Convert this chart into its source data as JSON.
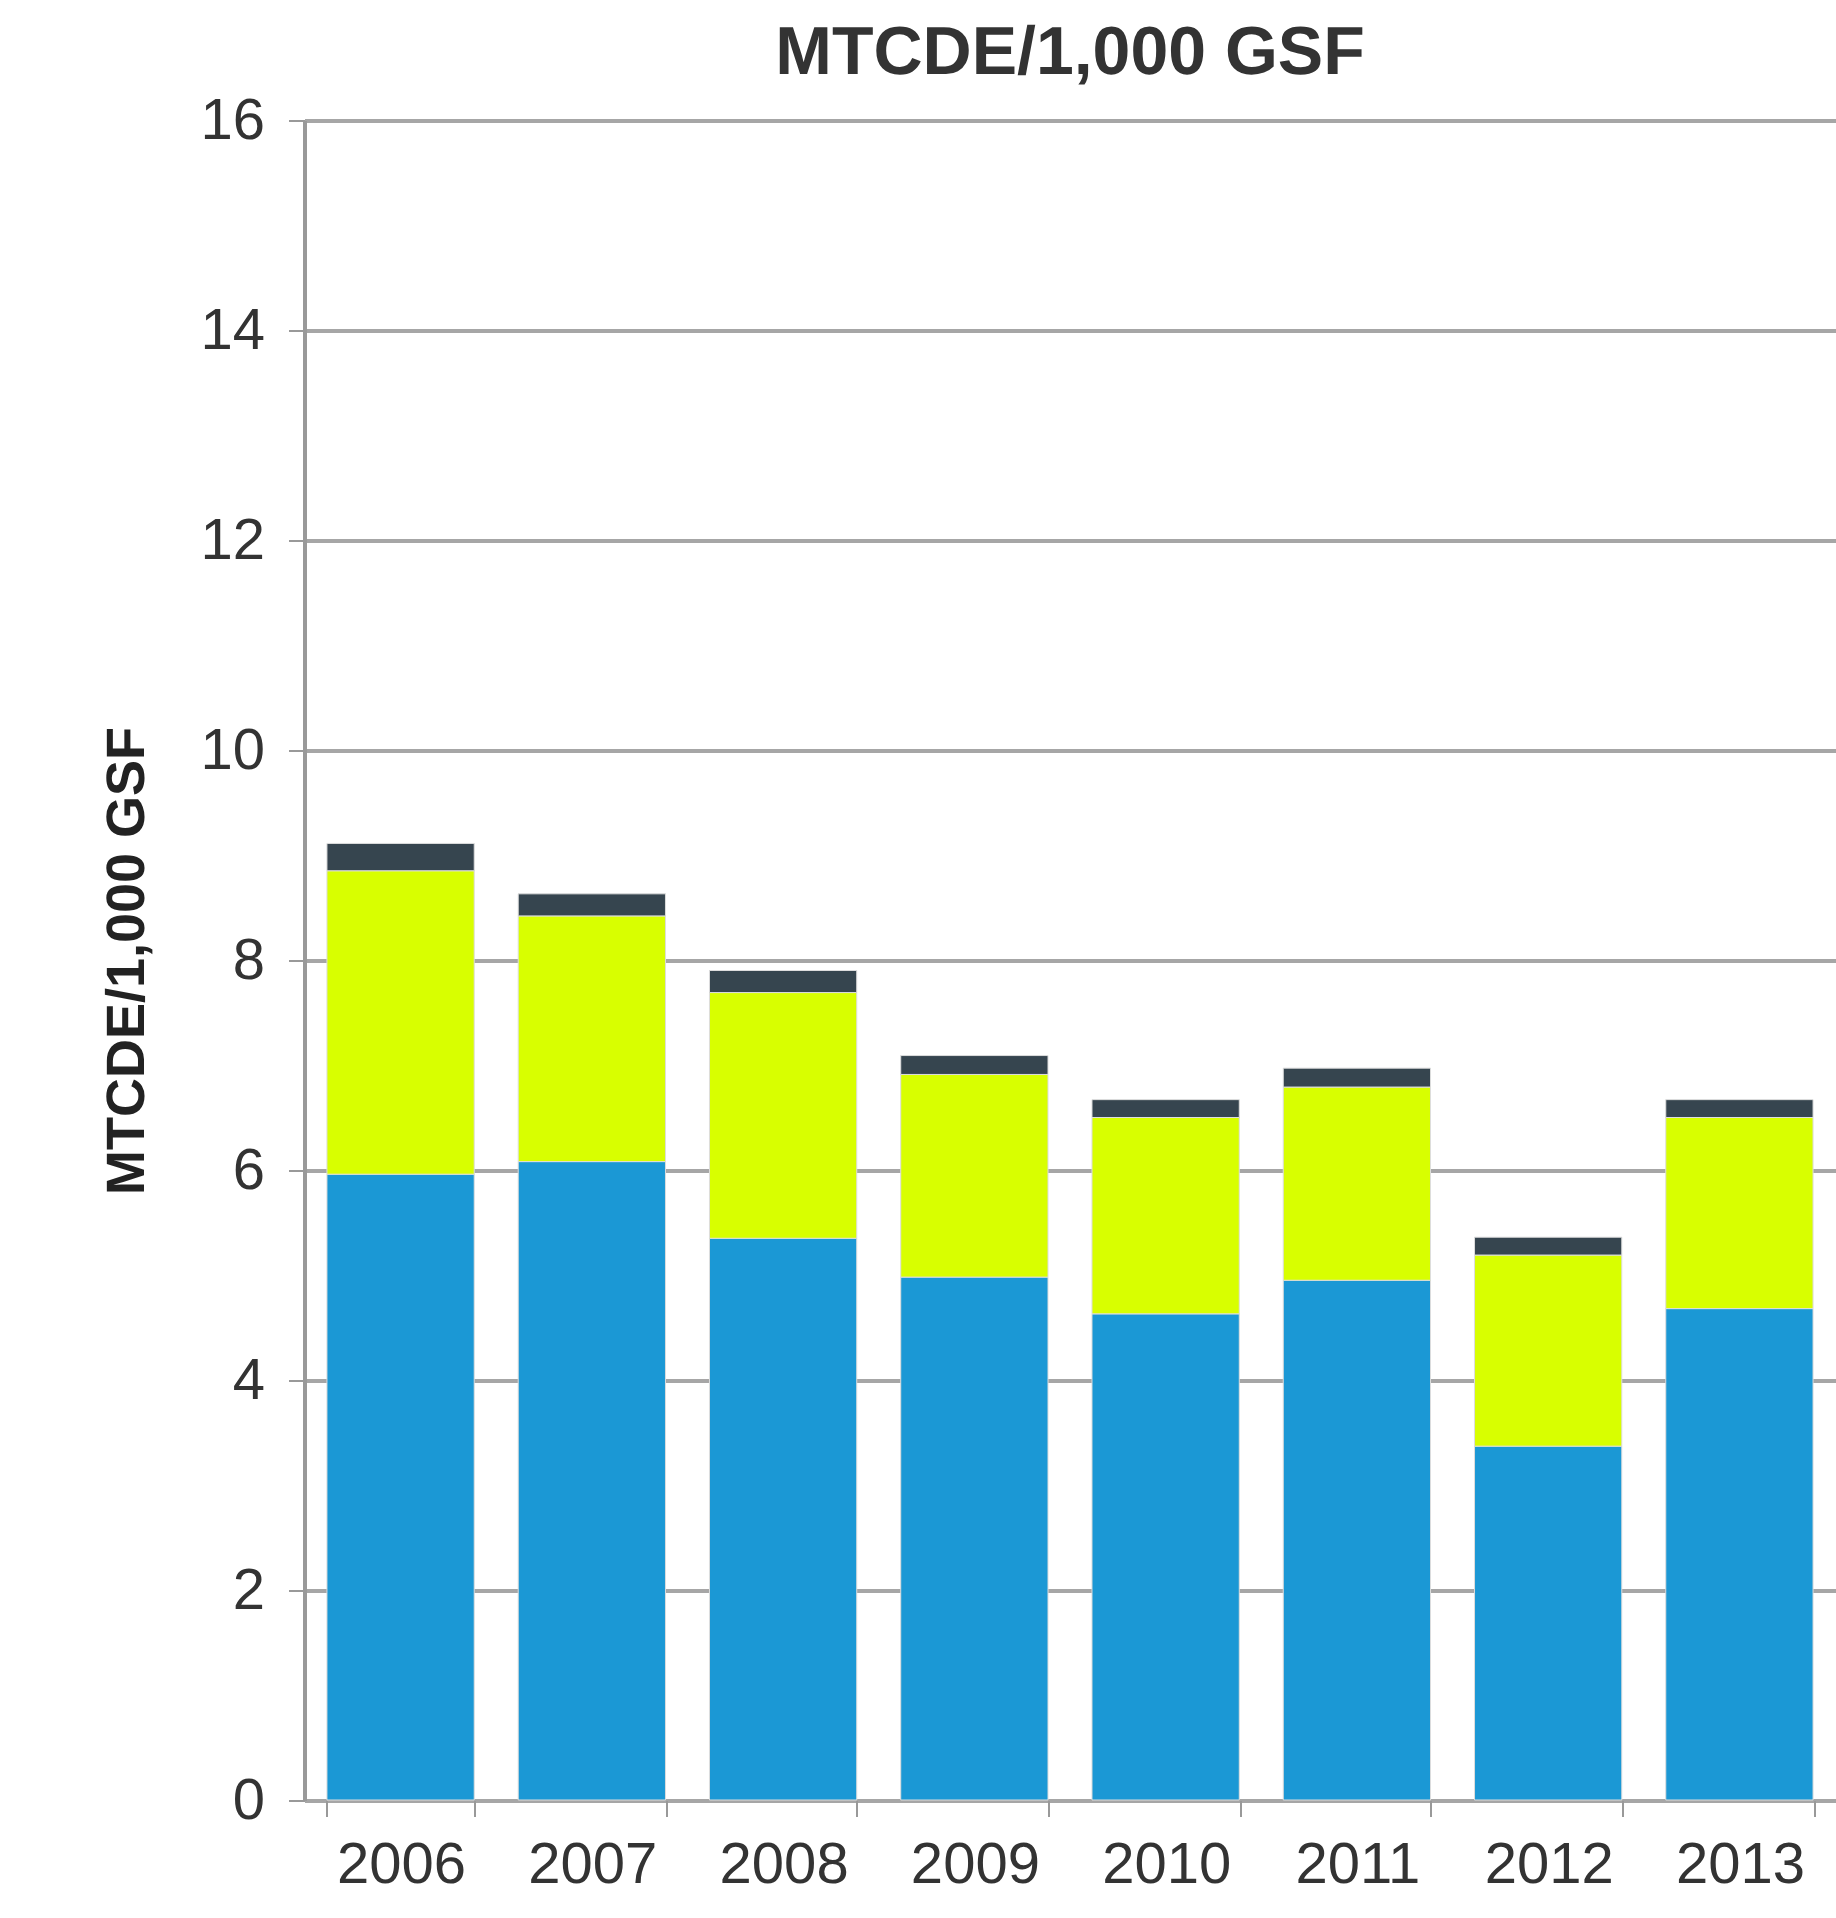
{
  "chart_data": {
    "type": "bar",
    "title": "MTCDE/1,000 GSF",
    "ylabel": "MTCDE/1,000 GSF",
    "categories": [
      "2006",
      "2007",
      "2008",
      "2009",
      "2010",
      "2011",
      "2012",
      "2013"
    ],
    "stacked": true,
    "series": [
      {
        "color": "#1b98d5",
        "values": [
          5.96,
          6.08,
          5.35,
          4.98,
          4.63,
          4.95,
          3.37,
          4.68
        ]
      },
      {
        "color": "#d8ff00",
        "values": [
          2.89,
          2.34,
          2.34,
          1.93,
          1.87,
          1.84,
          1.82,
          1.82
        ]
      },
      {
        "color": "#36454f",
        "values": [
          0.26,
          0.21,
          0.21,
          0.18,
          0.17,
          0.18,
          0.17,
          0.17
        ]
      }
    ],
    "ylim": [
      0,
      16
    ],
    "yticks": [
      0,
      2,
      4,
      6,
      8,
      10,
      12,
      14,
      16
    ],
    "grid": "y"
  }
}
